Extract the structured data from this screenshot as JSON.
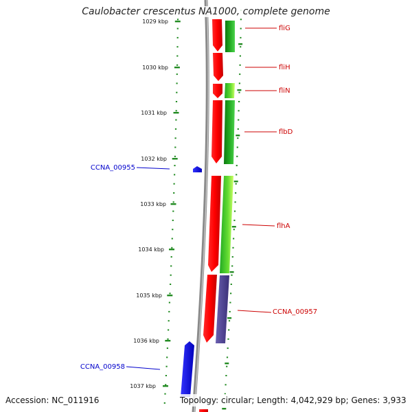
{
  "title": "Caulobacter crescentus NA1000, complete genome",
  "footer": {
    "accession": "Accession: NC_011916",
    "summary": "Topology: circular; Length: 4,042,929 bp; Genes: 3,933"
  },
  "ticks": [
    "1029 kbp",
    "1030 kbp",
    "1031 kbp",
    "1032 kbp",
    "1033 kbp",
    "1034 kbp",
    "1035 kbp",
    "1036 kbp",
    "1037 kbp"
  ],
  "genes": [
    {
      "label": "fliG",
      "color": "#cc0000"
    },
    {
      "label": "fliH",
      "color": "#cc0000"
    },
    {
      "label": "fliN",
      "color": "#cc0000"
    },
    {
      "label": "flbD",
      "color": "#cc0000"
    },
    {
      "label": "CCNA_00955",
      "color": "#0000cc"
    },
    {
      "label": "flhA",
      "color": "#cc0000"
    },
    {
      "label": "CCNA_00957",
      "color": "#cc0000"
    },
    {
      "label": "CCNA_00958",
      "color": "#0000cc"
    }
  ],
  "colors": {
    "forward_gene": "#ff0000",
    "reverse_gene": "#0000ff",
    "tick": "#228b22",
    "backbone": "#888888",
    "cds_green": "#22aa22",
    "cds_purple": "#4b3f8f"
  }
}
